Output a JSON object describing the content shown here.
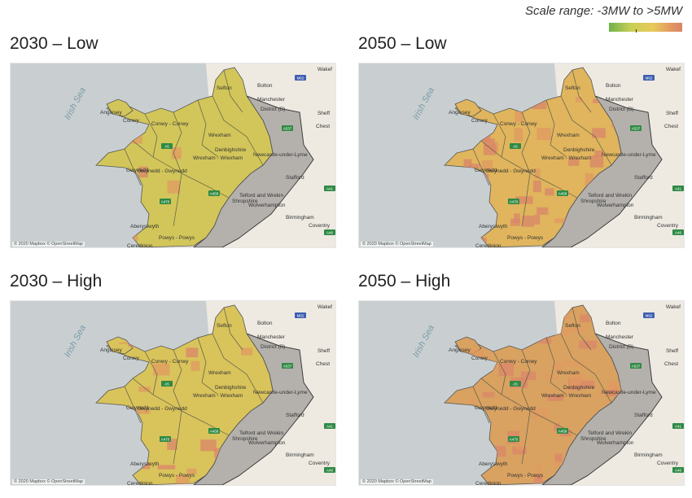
{
  "scale": {
    "label": "Scale range: -3MW to >5MW",
    "min_color": "#6fb24a",
    "max_color": "#d98466"
  },
  "panels": [
    {
      "title": "2030 – Low",
      "fill": "#d2c65a",
      "hot": 0.1
    },
    {
      "title": "2050 – Low",
      "fill": "#e0b55d",
      "hot": 0.45
    },
    {
      "title": "2030 – High",
      "fill": "#d9c35b",
      "hot": 0.25
    },
    {
      "title": "2050 – High",
      "fill": "#d9a261",
      "hot": 0.65
    }
  ],
  "map_labels": {
    "sea": "Irish Sea",
    "places": [
      "Wakef",
      "Bolton",
      "Sefton",
      "Manchester",
      "District (B)",
      "Sheff",
      "Chest",
      "Anglesey",
      "Conwy",
      "Conwy - Conwy",
      "Wrexham",
      "Wrexham - Wrexham",
      "Gwynedd",
      "Gwynedd - Gwynedd",
      "Newcastle-under-Lyme",
      "Stafford",
      "Shropshire",
      "Telford and Wrekin",
      "Wolverhampton",
      "Birmingham",
      "Coventry",
      "Aberystwyth",
      "Powys - Powys",
      "Ceredigion",
      "Denbighshire"
    ],
    "roads": [
      "M62",
      "A537",
      "A5",
      "A470",
      "A458",
      "A41",
      "A46"
    ]
  },
  "attribution": "© 2020 Mapbox © OpenStreetMap"
}
